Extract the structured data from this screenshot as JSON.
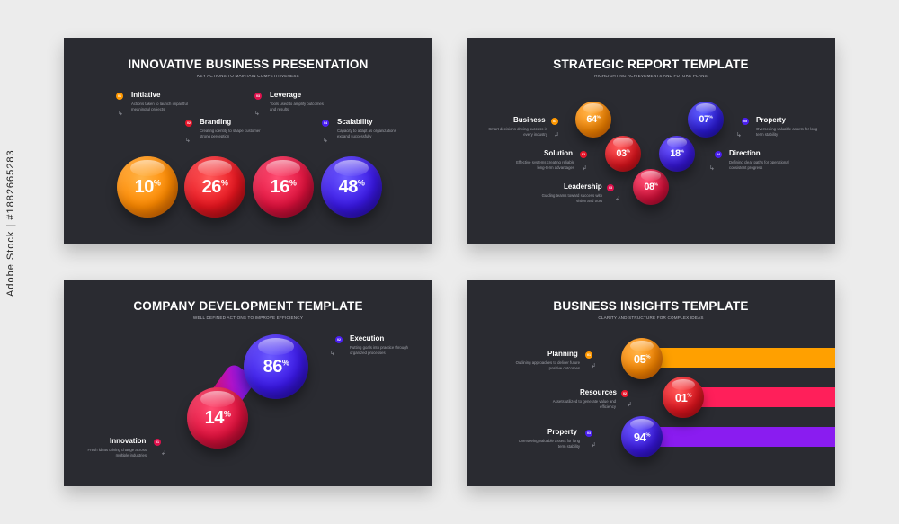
{
  "slide1": {
    "title": "INNOVATIVE BUSINESS PRESENTATION",
    "subtitle": "KEY ACTIONS TO MAINTAIN COMPETITIVENESS",
    "items": [
      {
        "num": "01",
        "label": "Initiative",
        "desc": "Actions taken to launch impactful meaningful projects"
      },
      {
        "num": "02",
        "label": "Branding",
        "desc": "Creating identity to shape customer strong perception"
      },
      {
        "num": "03",
        "label": "Leverage",
        "desc": "Tools used to amplify outcomes and results"
      },
      {
        "num": "04",
        "label": "Scalability",
        "desc": "Capacity to adapt as organizations expand successfully"
      }
    ],
    "values": [
      "10",
      "26",
      "16",
      "48"
    ]
  },
  "slide2": {
    "title": "STRATEGIC REPORT TEMPLATE",
    "subtitle": "HIGHLIGHTING ACHIEVEMENTS AND FUTURE PLANS",
    "items": [
      {
        "num": "01",
        "label": "Business",
        "desc": "Smart decisions driving success in every industry"
      },
      {
        "num": "02",
        "label": "Solution",
        "desc": "Effective systems creating reliable long-term advantages"
      },
      {
        "num": "03",
        "label": "Leadership",
        "desc": "Guiding teams toward success with vision and trust"
      },
      {
        "num": "04",
        "label": "Direction",
        "desc": "Defining clear paths for operational consistent progress"
      },
      {
        "num": "05",
        "label": "Property",
        "desc": "Overseeing valuable assets for long term stability"
      }
    ],
    "values": [
      "64",
      "03",
      "08",
      "18",
      "07"
    ]
  },
  "slide3": {
    "title": "COMPANY DEVELOPMENT TEMPLATE",
    "subtitle": "WELL DEFINED ACTIONS TO IMPROVE EFFICIENCY",
    "items": [
      {
        "num": "01",
        "label": "Innovation",
        "desc": "Fresh ideas driving change across multiple industries"
      },
      {
        "num": "02",
        "label": "Execution",
        "desc": "Putting goals into practice through organized processes"
      }
    ],
    "values": [
      "14",
      "86"
    ]
  },
  "slide4": {
    "title": "BUSINESS INSIGHTS TEMPLATE",
    "subtitle": "CLARITY AND STRUCTURE FOR COMPLEX IDEAS",
    "items": [
      {
        "num": "01",
        "label": "Planning",
        "desc": "Outlining approaches to deliver future positive outcomes"
      },
      {
        "num": "02",
        "label": "Resources",
        "desc": "Assets utilized to generate value and efficiency"
      },
      {
        "num": "03",
        "label": "Property",
        "desc": "Overseeing valuable assets for long term stability"
      }
    ],
    "values": [
      "05",
      "01",
      "94"
    ]
  },
  "percent_sign": "%",
  "watermark": "Adobe Stock | #1882665283",
  "colors": {
    "orange": "#ff9800",
    "red": "#e8152a",
    "crimson": "#e0114d",
    "purple": "#4a1ff0",
    "background": "#2a2b31"
  }
}
